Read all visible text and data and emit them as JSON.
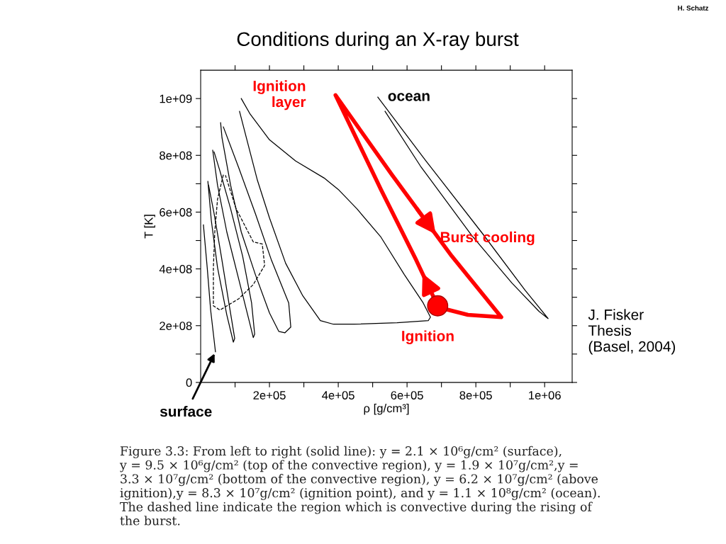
{
  "chart_data": {
    "type": "line",
    "title": "Conditions during an X-ray burst",
    "xlabel": "ρ [g/cm³]",
    "ylabel": "T [K]",
    "xlim": [
      0,
      1080000
    ],
    "ylim": [
      0,
      1100000000
    ],
    "xticks": [
      {
        "value": 100000,
        "label": null
      },
      {
        "value": 200000,
        "label": "2e+05"
      },
      {
        "value": 300000,
        "label": null
      },
      {
        "value": 400000,
        "label": "4e+05"
      },
      {
        "value": 500000,
        "label": null
      },
      {
        "value": 600000,
        "label": "6e+05"
      },
      {
        "value": 700000,
        "label": null
      },
      {
        "value": 800000,
        "label": "8e+05"
      },
      {
        "value": 900000,
        "label": null
      },
      {
        "value": 1000000,
        "label": "1e+06"
      }
    ],
    "yticks": [
      0,
      {
        "value": 100000000,
        "label": null
      },
      {
        "value": 200000000,
        "label": "2e+08"
      },
      {
        "value": 300000000,
        "label": null
      },
      {
        "value": 400000000,
        "label": "4e+08"
      },
      {
        "value": 500000000,
        "label": null
      },
      {
        "value": 600000000,
        "label": "6e+08"
      },
      {
        "value": 700000000,
        "label": null
      },
      {
        "value": 800000000,
        "label": "8e+08"
      },
      {
        "value": 900000000,
        "label": null
      },
      {
        "value": 1000000000,
        "label": "1e+09"
      }
    ],
    "grid": false,
    "legend": false,
    "marker": "none",
    "series": [
      {
        "color": "#000000",
        "line_style": "solid",
        "x": [
          8000,
          19000,
          29000,
          43000
        ],
        "values": [
          555000000,
          405000000,
          255000000,
          108000000
        ]
      },
      {
        "color": "#000000",
        "line_style": "solid",
        "x": [
          21000,
          31000,
          49000,
          76000,
          95000,
          99000,
          82000,
          60000,
          39000,
          23000
        ],
        "values": [
          708000000,
          570000000,
          405000000,
          238000000,
          142000000,
          155000000,
          280000000,
          445000000,
          595000000,
          695000000
        ]
      },
      {
        "color": "#000000",
        "line_style": "solid",
        "x": [
          35000,
          49000,
          76000,
          111000,
          142000,
          153000,
          157000,
          148000,
          122000,
          87000,
          56000,
          39000
        ],
        "values": [
          818000000,
          695000000,
          530000000,
          362000000,
          212000000,
          158000000,
          170000000,
          280000000,
          445000000,
          612000000,
          745000000,
          812000000
        ]
      },
      {
        "color": "#000000",
        "line_style": "solid",
        "x": [
          58000,
          62000,
          87000,
          118000,
          159000,
          200000,
          227000,
          245000,
          262000,
          256000,
          206000,
          159000,
          111000,
          66000
        ],
        "values": [
          915000000,
          862000000,
          695000000,
          530000000,
          380000000,
          245000000,
          180000000,
          175000000,
          195000000,
          280000000,
          430000000,
          595000000,
          755000000,
          900000000
        ]
      },
      {
        "color": "#000000",
        "line_style": "solid",
        "x": [
          118000,
          144000,
          200000,
          276000,
          359000,
          400000,
          454000,
          524000,
          592000,
          647000,
          668000,
          662000,
          571000,
          447000,
          386000,
          348000,
          297000,
          247000,
          200000,
          165000,
          138000,
          113000
        ],
        "values": [
          1000000000,
          945000000,
          855000000,
          780000000,
          720000000,
          680000000,
          612000000,
          512000000,
          380000000,
          280000000,
          230000000,
          218000000,
          210000000,
          205000000,
          205000000,
          218000000,
          305000000,
          420000000,
          580000000,
          712000000,
          838000000,
          955000000
        ]
      },
      {
        "color": "#000000",
        "line_style": "solid",
        "x": [
          515000,
          654000,
          819000,
          943000,
          1010000,
          984000,
          905000,
          788000,
          639000,
          536000
        ],
        "values": [
          1005000000,
          782000000,
          525000000,
          325000000,
          225000000,
          250000000,
          350000000,
          518000000,
          762000000,
          955000000
        ]
      },
      {
        "color": "#000000",
        "line_style": "dashed",
        "x": [
          66000,
          49000,
          41000,
          37000,
          37000,
          56000,
          111000,
          153000,
          186000,
          179000,
          153000,
          103000,
          72000
        ],
        "values": [
          732000000,
          645000000,
          530000000,
          405000000,
          270000000,
          255000000,
          295000000,
          345000000,
          412000000,
          488000000,
          495000000,
          612000000,
          730000000
        ]
      },
      {
        "color": "#ff0000",
        "line_style": "solid",
        "x": [
          689000,
          627000,
          524000,
          392000,
          557000,
          730000,
          874000,
          777000,
          700000
        ],
        "values": [
          270000000,
          430000000,
          680000000,
          1012000000,
          730000000,
          445000000,
          230000000,
          238000000,
          262000000
        ]
      },
      {
        "type": "scatter",
        "color": "#ff0000",
        "marker": "circle",
        "x": [
          689000
        ],
        "values": [
          270000000
        ]
      }
    ],
    "annotations": [
      {
        "text": "Ignition\nlayer",
        "x": 392000,
        "y": 1012000000
      },
      {
        "text": "ocean",
        "x": 515000,
        "y": 1005000000
      },
      {
        "text": "Burst cooling",
        "x": 730000,
        "y": 445000000
      },
      {
        "text": "Ignition",
        "x": 689000,
        "y": 270000000
      },
      {
        "text": "surface",
        "x": 43000,
        "y": 108000000
      },
      "J. Fisker\nThesis\n(Basel, 2004)",
      "Figure 3.3: From left to right (solid line): y = 2.1 × 10⁶g/cm² (surface),\ny = 9.5 × 10⁶g/cm² (top of the convective region), y = 1.9 × 10⁷g/cm²,y =\n3.3 × 10⁷g/cm² (bottom of the convective region), y = 6.2 × 10⁷g/cm² (above\nignition),y = 8.3 × 10⁷g/cm² (ignition point), and y = 1.1 × 10⁸g/cm² (ocean).\nThe dashed line indicate the region which is convective during the rising of\nthe burst.",
      "H. Schatz"
    ]
  }
}
